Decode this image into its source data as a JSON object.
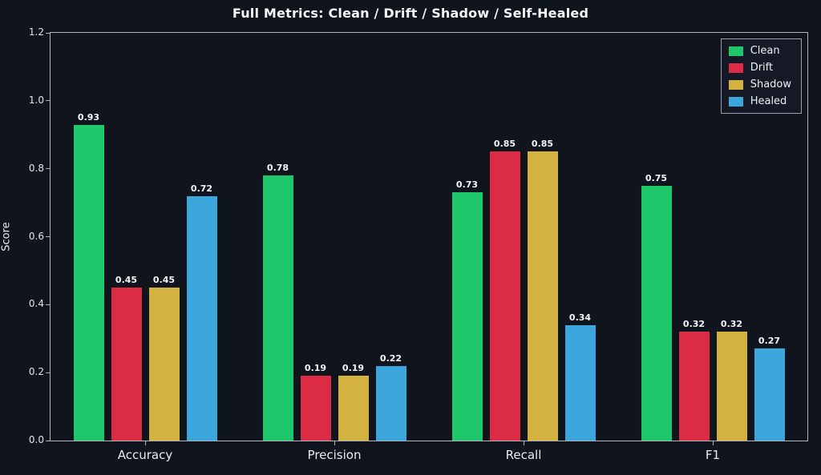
{
  "chart_data": {
    "type": "bar",
    "title": "Full Metrics: Clean / Drift / Shadow / Self-Healed",
    "xlabel": "",
    "ylabel": "Score",
    "categories": [
      "Accuracy",
      "Precision",
      "Recall",
      "F1"
    ],
    "series": [
      {
        "name": "Clean",
        "color": "#1ec86a",
        "values": [
          0.93,
          0.78,
          0.73,
          0.75
        ]
      },
      {
        "name": "Drift",
        "color": "#dc2b45",
        "values": [
          0.45,
          0.19,
          0.85,
          0.32
        ]
      },
      {
        "name": "Shadow",
        "color": "#d3b23f",
        "values": [
          0.45,
          0.19,
          0.85,
          0.32
        ]
      },
      {
        "name": "Healed",
        "color": "#3ba7dd",
        "values": [
          0.72,
          0.22,
          0.34,
          0.27
        ]
      }
    ],
    "ylim": [
      0,
      1.2
    ],
    "yticks": [
      0.0,
      0.2,
      0.4,
      0.6,
      0.8,
      1.0,
      1.2
    ],
    "grid": false,
    "legend_position": "upper right"
  }
}
